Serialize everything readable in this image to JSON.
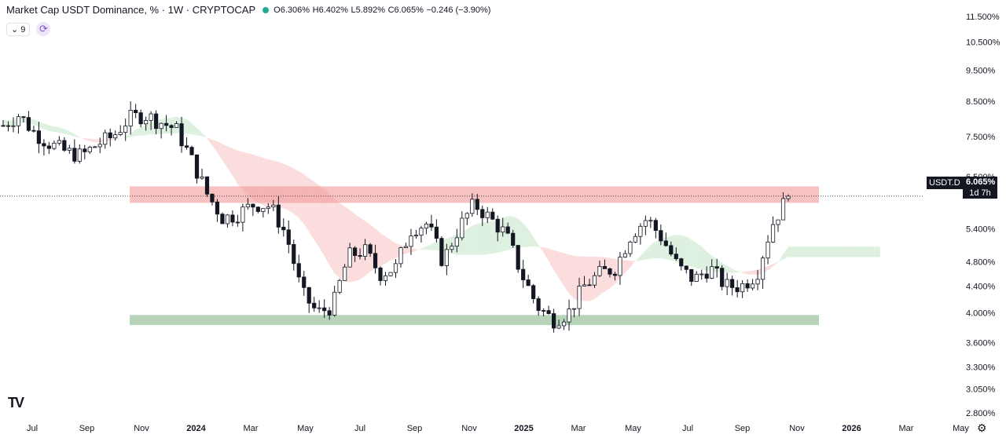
{
  "header": {
    "title": "Market Cap USDT Dominance, % · 1W · CRYPTOCAP",
    "open": "O6.306%",
    "high": "H6.402%",
    "low": "L5.892%",
    "close": "C6.065%",
    "change": "−0.246 (−3.90%)",
    "status_color": "#22ab94"
  },
  "controls": {
    "indicator_count": "9",
    "sync_icon": "sync-icon"
  },
  "price_badge": {
    "symbol": "USDT.D",
    "price": "6.065%",
    "countdown": "1d 7h"
  },
  "colors": {
    "up": "#131722",
    "down": "#131722",
    "cloud_bull": "#c8e6c9",
    "cloud_bear": "#f7c6c5",
    "resistance": "#f29a9a",
    "support": "#a5c9a8"
  },
  "chart_data": {
    "type": "candlestick",
    "title": "Market Cap USDT Dominance, % · 1W · CRYPTOCAP",
    "y_scale": "log",
    "ylim": [
      2.75,
      11.5
    ],
    "y_ticks": [
      "11.500%",
      "10.500%",
      "9.500%",
      "8.500%",
      "7.500%",
      "6.500%",
      "5.400%",
      "4.800%",
      "4.400%",
      "4.000%",
      "3.600%",
      "3.300%",
      "3.050%",
      "2.800%"
    ],
    "y_tick_values": [
      11.5,
      10.5,
      9.5,
      8.5,
      7.5,
      6.5,
      5.4,
      4.8,
      4.4,
      4.0,
      3.6,
      3.3,
      3.05,
      2.8
    ],
    "x_ticks": [
      "Jul",
      "Sep",
      "Nov",
      "2024",
      "Mar",
      "May",
      "Jul",
      "Sep",
      "Nov",
      "2025",
      "Mar",
      "May",
      "Jul",
      "Sep",
      "Nov",
      "2026",
      "Mar",
      "May"
    ],
    "x_tick_bold": [
      "2024",
      "2025",
      "2026"
    ],
    "last_price": 6.065,
    "resistance_zone": [
      5.92,
      6.28
    ],
    "support_zone": [
      3.83,
      3.97
    ],
    "close_path": [
      [
        0,
        7.8
      ],
      [
        1,
        8.1
      ],
      [
        2,
        7.6
      ],
      [
        3,
        7.3
      ],
      [
        4,
        7.1
      ],
      [
        5,
        7.0
      ],
      [
        6,
        7.3
      ],
      [
        7,
        7.5
      ],
      [
        8,
        8.0
      ],
      [
        9,
        8.1
      ],
      [
        10,
        7.9
      ],
      [
        11,
        7.7
      ],
      [
        12,
        6.9
      ],
      [
        13,
        6.1
      ],
      [
        14,
        5.6
      ],
      [
        15,
        5.7
      ],
      [
        16,
        5.9
      ],
      [
        17,
        5.85
      ],
      [
        18,
        5.3
      ],
      [
        19,
        4.3
      ],
      [
        20,
        4.0
      ],
      [
        21,
        4.1
      ],
      [
        22,
        4.9
      ],
      [
        23,
        5.0
      ],
      [
        24,
        4.6
      ],
      [
        25,
        4.7
      ],
      [
        26,
        5.4
      ],
      [
        27,
        5.5
      ],
      [
        28,
        4.8
      ],
      [
        29,
        5.4
      ],
      [
        30,
        5.9
      ],
      [
        31,
        5.6
      ],
      [
        32,
        5.3
      ],
      [
        33,
        4.6
      ],
      [
        34,
        4.1
      ],
      [
        35,
        3.9
      ],
      [
        36,
        4.0
      ],
      [
        37,
        4.4
      ],
      [
        38,
        4.6
      ],
      [
        39,
        4.7
      ],
      [
        40,
        5.3
      ],
      [
        41,
        5.6
      ],
      [
        42,
        5.2
      ],
      [
        43,
        4.7
      ],
      [
        44,
        4.5
      ],
      [
        45,
        4.7
      ],
      [
        46,
        4.4
      ],
      [
        47,
        4.4
      ],
      [
        48,
        4.6
      ],
      [
        49,
        5.5
      ],
      [
        50,
        6.065
      ]
    ],
    "candle_count": 155
  },
  "icons": {
    "logo": "tradingview-logo",
    "settings": "gear-icon"
  }
}
